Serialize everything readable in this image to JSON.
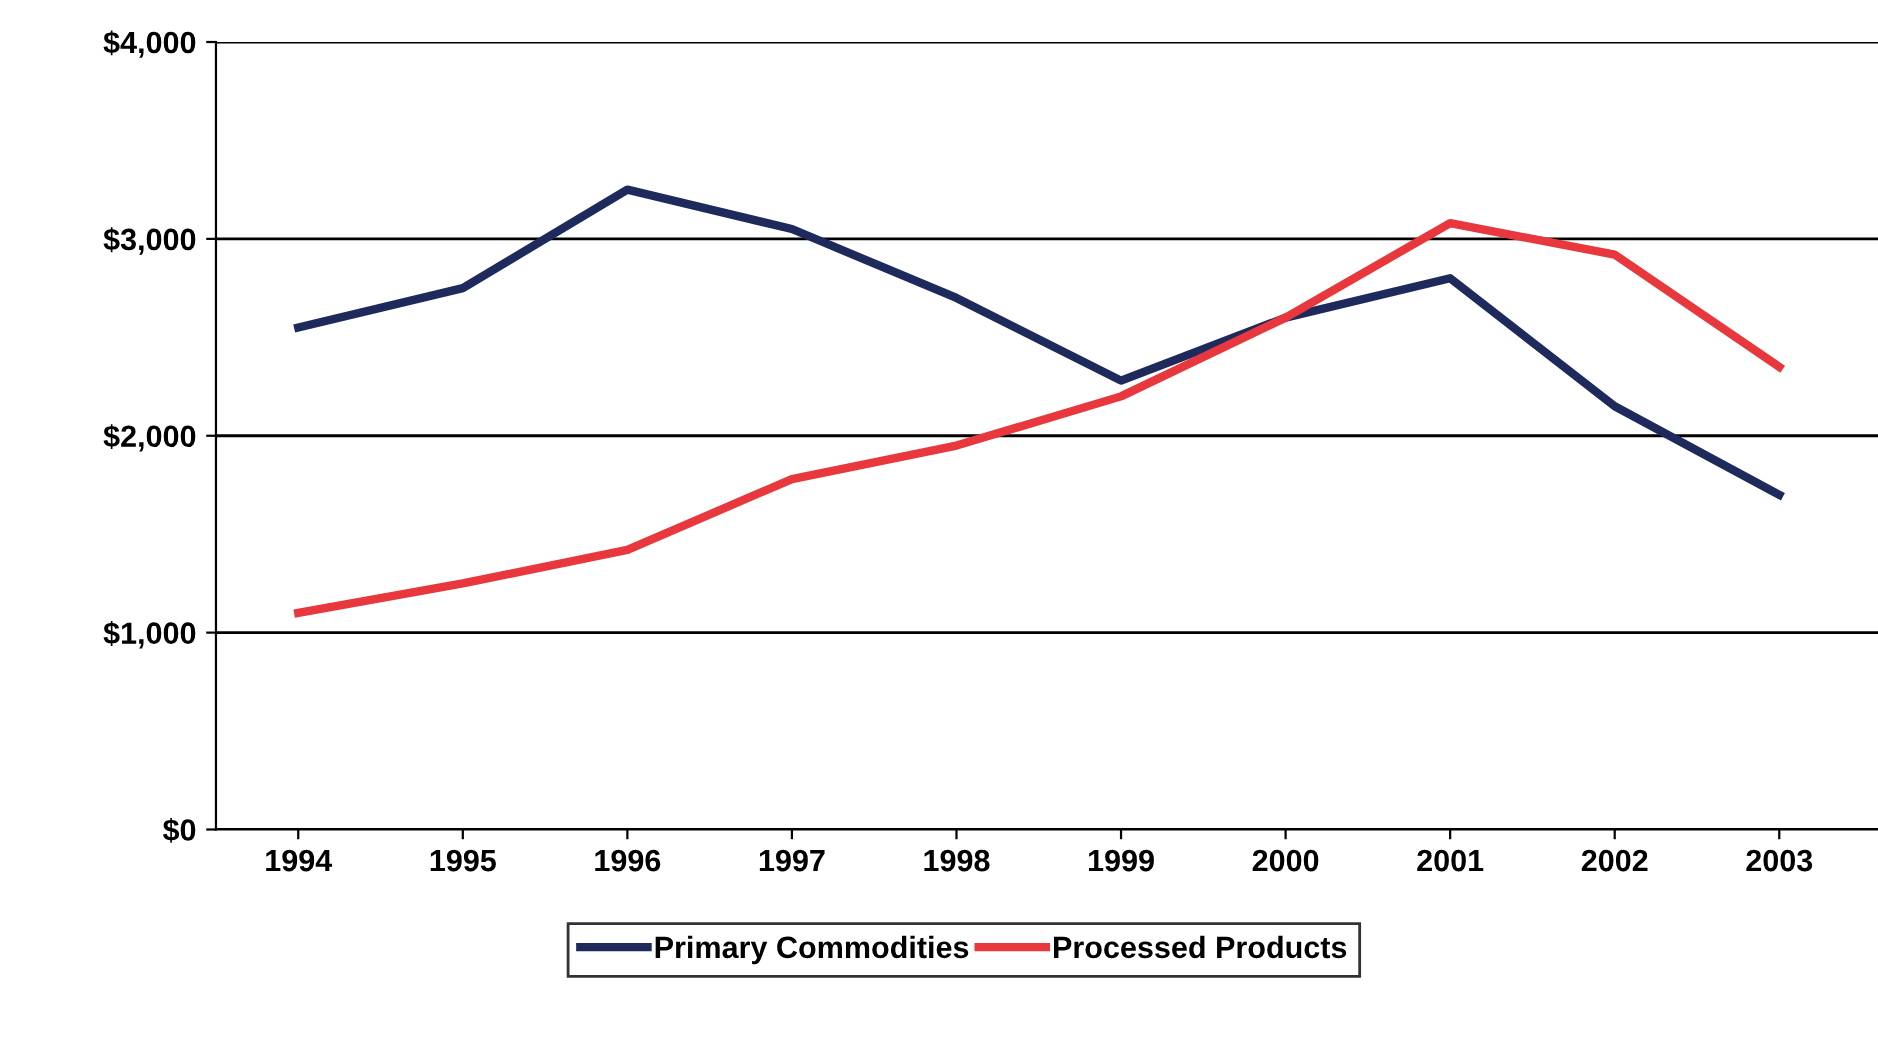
{
  "chart_data": {
    "type": "line",
    "categories": [
      "1994",
      "1995",
      "1996",
      "1997",
      "1998",
      "1999",
      "2000",
      "2001",
      "2002",
      "2003"
    ],
    "series": [
      {
        "name": "Primary Commodities",
        "color": "#1f2a5c",
        "values": [
          2550,
          2750,
          3250,
          3050,
          2700,
          2280,
          2600,
          2800,
          2150,
          1700
        ]
      },
      {
        "name": "Processed Products",
        "color": "#e8383d",
        "values": [
          1100,
          1250,
          1420,
          1780,
          1950,
          2200,
          2600,
          3080,
          2920,
          2350
        ]
      }
    ],
    "ylim": [
      0,
      4000
    ],
    "yticks": [
      {
        "value": 0,
        "label": "$0"
      },
      {
        "value": 1000,
        "label": "$1,000"
      },
      {
        "value": 2000,
        "label": "$2,000"
      },
      {
        "value": 3000,
        "label": "$3,000"
      },
      {
        "value": 4000,
        "label": "$4,000"
      }
    ],
    "grid": "y",
    "legend": "bottom",
    "marker": "none",
    "line_style": "solid"
  }
}
